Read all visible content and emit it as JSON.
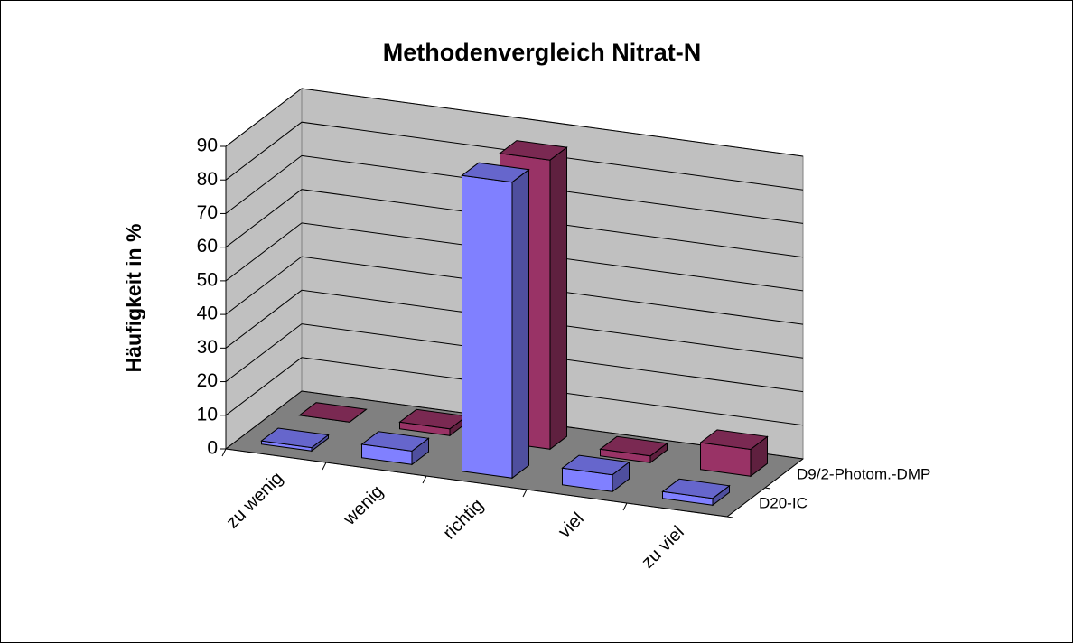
{
  "chart_data": {
    "type": "bar3d",
    "title": "Methodenvergleich Nitrat-N",
    "y_label": "Häufigkeit in %",
    "categories": [
      "zu wenig",
      "wenig",
      "richtig",
      "viel",
      "zu viel"
    ],
    "series": [
      {
        "name": "D20-IC",
        "color": "#8080ff",
        "values": [
          1,
          4,
          88,
          5,
          2
        ]
      },
      {
        "name": "D9/2-Photom.-DMP",
        "color": "#993366",
        "values": [
          0,
          2,
          86,
          2,
          8
        ]
      }
    ],
    "ylim": [
      0,
      90
    ],
    "yticks": [
      0,
      10,
      20,
      30,
      40,
      50,
      60,
      70,
      80,
      90
    ],
    "grid": true
  }
}
